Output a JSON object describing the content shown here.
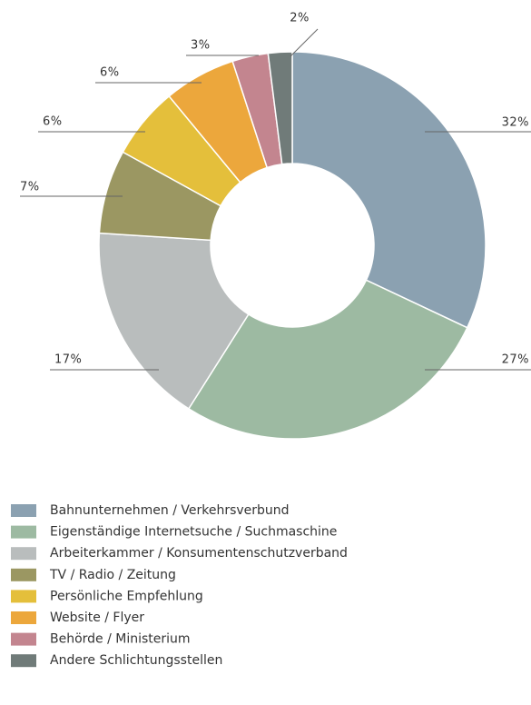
{
  "chart_data": {
    "type": "donut",
    "categories": [
      "Bahnunternehmen / Verkehrsverbund",
      "Eigenständige Internetsuche / Suchmaschine",
      "Arbeiterkammer / Konsumentenschutzverband",
      "TV / Radio / Zeitung",
      "Persönliche Empfehlung",
      "Website / Flyer",
      "Behörde / Ministerium",
      "Andere Schlichtungsstellen"
    ],
    "values": [
      32,
      27,
      17,
      7,
      6,
      6,
      3,
      2
    ],
    "value_labels": [
      "32%",
      "27%",
      "17%",
      "7%",
      "6%",
      "6%",
      "3%",
      "2%"
    ],
    "colors": [
      "#8ba1b1",
      "#9dbaa2",
      "#b9bdbd",
      "#9b9762",
      "#e4bf3b",
      "#eca73c",
      "#c3858f",
      "#707b79"
    ],
    "legend": "bottom-left"
  }
}
